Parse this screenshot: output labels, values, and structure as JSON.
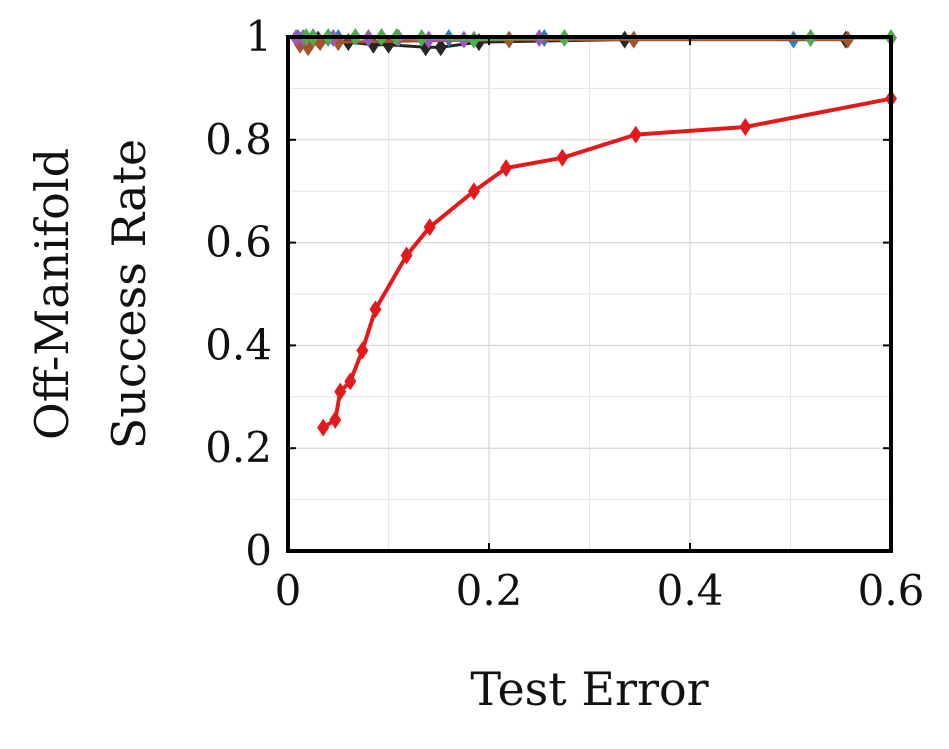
{
  "chart_data": {
    "type": "line",
    "title": "",
    "xlabel": "Test Error",
    "ylabel_lines": [
      "Off-Manifold",
      "Success Rate"
    ],
    "xlim": [
      0,
      0.6
    ],
    "ylim": [
      0,
      1
    ],
    "x_ticks": [
      0,
      0.2,
      0.4,
      0.6
    ],
    "x_tick_labels": [
      "0",
      "0.2",
      "0.4",
      "0.6"
    ],
    "y_ticks": [
      0,
      0.2,
      0.4,
      0.6,
      0.8,
      1
    ],
    "y_tick_labels": [
      "0",
      "0.2",
      "0.4",
      "0.6",
      "0.8",
      "1"
    ],
    "grid": true,
    "legend": "none",
    "series": [
      {
        "color": "#e31a1c",
        "marker": "diamond",
        "points": [
          [
            0.035,
            0.24
          ],
          [
            0.047,
            0.255
          ],
          [
            0.052,
            0.31
          ],
          [
            0.062,
            0.33
          ],
          [
            0.074,
            0.39
          ],
          [
            0.087,
            0.47
          ],
          [
            0.118,
            0.575
          ],
          [
            0.141,
            0.63
          ],
          [
            0.185,
            0.7
          ],
          [
            0.217,
            0.745
          ],
          [
            0.273,
            0.765
          ],
          [
            0.346,
            0.81
          ],
          [
            0.455,
            0.825
          ],
          [
            0.6,
            0.88
          ]
        ]
      },
      {
        "color": "#262626",
        "marker": "diamond",
        "points": [
          [
            0.01,
            0.995
          ],
          [
            0.03,
            0.995
          ],
          [
            0.06,
            0.99
          ],
          [
            0.085,
            0.985
          ],
          [
            0.1,
            0.985
          ],
          [
            0.137,
            0.98
          ],
          [
            0.152,
            0.98
          ],
          [
            0.19,
            0.99
          ],
          [
            0.335,
            0.995
          ],
          [
            0.555,
            0.995
          ]
        ]
      },
      {
        "color": "#2b83ba",
        "marker": "diamond",
        "points": [
          [
            0.01,
            0.998
          ],
          [
            0.04,
            0.998
          ],
          [
            0.05,
            0.998
          ],
          [
            0.16,
            0.998
          ],
          [
            0.255,
            0.998
          ],
          [
            0.503,
            0.995
          ]
        ]
      },
      {
        "color": "#a6532a",
        "marker": "diamond",
        "points": [
          [
            0.012,
            0.985
          ],
          [
            0.02,
            0.98
          ],
          [
            0.032,
            0.99
          ],
          [
            0.05,
            0.99
          ],
          [
            0.22,
            0.995
          ],
          [
            0.344,
            0.995
          ],
          [
            0.557,
            0.995
          ]
        ]
      },
      {
        "color": "#9b59b6",
        "marker": "diamond",
        "points": [
          [
            0.008,
            0.998
          ],
          [
            0.015,
            0.998
          ],
          [
            0.045,
            0.998
          ],
          [
            0.08,
            0.998
          ],
          [
            0.11,
            0.998
          ],
          [
            0.14,
            0.995
          ],
          [
            0.175,
            0.995
          ],
          [
            0.25,
            0.998
          ],
          [
            0.52,
            0.998
          ]
        ]
      },
      {
        "color": "#4daf4a",
        "marker": "diamond",
        "points": [
          [
            0.018,
            1.0
          ],
          [
            0.025,
            1.0
          ],
          [
            0.04,
            1.0
          ],
          [
            0.067,
            1.0
          ],
          [
            0.093,
            1.0
          ],
          [
            0.108,
            1.0
          ],
          [
            0.133,
            0.998
          ],
          [
            0.185,
            0.995
          ],
          [
            0.275,
            0.998
          ],
          [
            0.52,
            0.998
          ],
          [
            0.6,
            0.998
          ]
        ]
      }
    ]
  }
}
